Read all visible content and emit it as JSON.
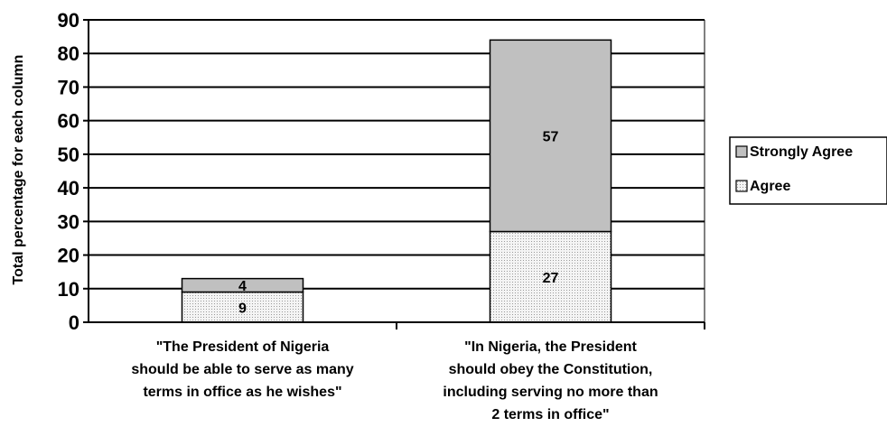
{
  "chart_data": {
    "type": "bar",
    "stacked": true,
    "title": "",
    "xlabel": "",
    "ylabel": "Total percentage for each column",
    "ylim": [
      0,
      90
    ],
    "yticks": [
      0,
      10,
      20,
      30,
      40,
      50,
      60,
      70,
      80,
      90
    ],
    "grid": true,
    "legend_position": "right",
    "categories": [
      [
        "\"The President of Nigeria",
        "should be able to serve as many",
        "terms in office as he wishes\""
      ],
      [
        "\"In Nigeria, the President",
        "should obey the Constitution,",
        "including serving no more than",
        "2 terms in office\""
      ]
    ],
    "series": [
      {
        "name": "Agree",
        "values": [
          9,
          27
        ],
        "color": "#efefef",
        "pattern": "dotted"
      },
      {
        "name": "Strongly Agree",
        "values": [
          4,
          57
        ],
        "color": "#c0c0c0",
        "pattern": "solid"
      }
    ],
    "legend_order": [
      "Strongly Agree",
      "Agree"
    ]
  }
}
